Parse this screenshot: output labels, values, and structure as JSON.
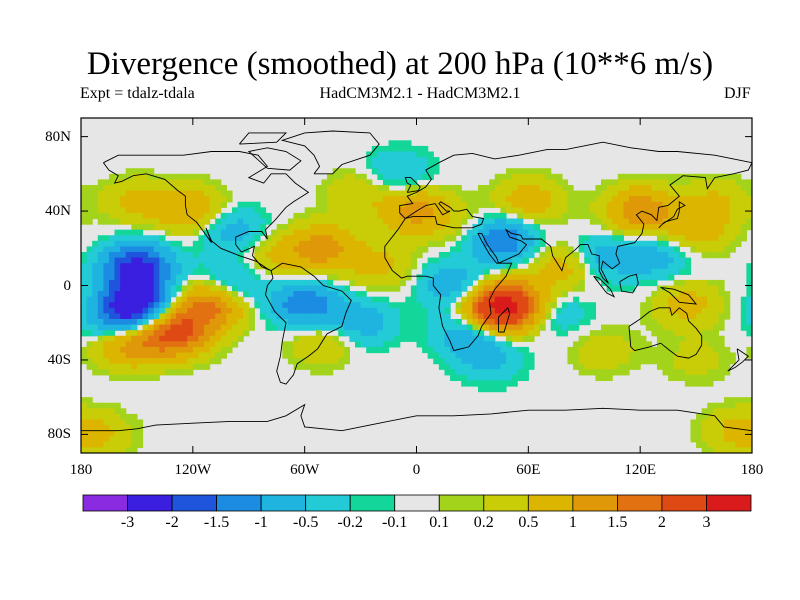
{
  "title": "Divergence (smoothed) at 200 hPa (10**6 m/s)",
  "subtitle_left": "Expt = tdalz-tdala",
  "subtitle_center": "HadCM3M2.1 - HadCM3M2.1",
  "subtitle_right": "DJF",
  "axes": {
    "y_ticks": [
      {
        "label": "80N",
        "lat": 80
      },
      {
        "label": "40N",
        "lat": 40
      },
      {
        "label": "0",
        "lat": 0
      },
      {
        "label": "40S",
        "lat": -40
      },
      {
        "label": "80S",
        "lat": -80
      }
    ],
    "x_ticks": [
      {
        "label": "180",
        "lon": -180
      },
      {
        "label": "120W",
        "lon": -120
      },
      {
        "label": "60W",
        "lon": -60
      },
      {
        "label": "0",
        "lon": 0
      },
      {
        "label": "60E",
        "lon": 60
      },
      {
        "label": "120E",
        "lon": 120
      },
      {
        "label": "180",
        "lon": 180
      }
    ],
    "lon_range": [
      -180,
      180
    ],
    "lat_range": [
      -90,
      90
    ]
  },
  "colorbar": {
    "colors": [
      "#8a2be2",
      "#3a1fe0",
      "#1f55dc",
      "#1b8ce2",
      "#1fb3e0",
      "#22cbd6",
      "#12d69a",
      "#e6e6e6",
      "#a3d31a",
      "#c9cd08",
      "#dcb500",
      "#df9808",
      "#e27211",
      "#df4a14",
      "#da1b1b"
    ],
    "labels": [
      "-3",
      "-2",
      "-1.5",
      "-1",
      "-0.5",
      "-0.2",
      "-0.1",
      "0.1",
      "0.2",
      "0.5",
      "1",
      "1.5",
      "2",
      "3"
    ],
    "thresholds": [
      -3,
      -2,
      -1.5,
      -1,
      -0.5,
      -0.2,
      -0.1,
      0.1,
      0.2,
      0.5,
      1,
      1.5,
      2,
      3
    ]
  },
  "field_anomalies": [
    {
      "lon": -150,
      "lat": 10,
      "value": -2.2
    },
    {
      "lon": -150,
      "lat": -10,
      "value": -2.4
    },
    {
      "lon": -160,
      "lat": -20,
      "value": -1.2
    },
    {
      "lon": -130,
      "lat": -25,
      "value": 2.2
    },
    {
      "lon": -155,
      "lat": -30,
      "value": 1.5
    },
    {
      "lon": -110,
      "lat": -10,
      "value": 1.8
    },
    {
      "lon": -120,
      "lat": 40,
      "value": 1.0
    },
    {
      "lon": -150,
      "lat": 45,
      "value": 0.6
    },
    {
      "lon": -100,
      "lat": 30,
      "value": -0.8
    },
    {
      "lon": -100,
      "lat": 0,
      "value": -0.9
    },
    {
      "lon": -75,
      "lat": 15,
      "value": 0.6
    },
    {
      "lon": -50,
      "lat": 20,
      "value": 1.2
    },
    {
      "lon": -60,
      "lat": -10,
      "value": -1.4
    },
    {
      "lon": -50,
      "lat": -30,
      "value": 0.6
    },
    {
      "lon": -30,
      "lat": -20,
      "value": -0.8
    },
    {
      "lon": -20,
      "lat": 10,
      "value": 0.6
    },
    {
      "lon": -30,
      "lat": 50,
      "value": 0.5
    },
    {
      "lon": -10,
      "lat": 60,
      "value": -0.6
    },
    {
      "lon": 0,
      "lat": 40,
      "value": 1.2
    },
    {
      "lon": 20,
      "lat": 0,
      "value": -0.9
    },
    {
      "lon": 30,
      "lat": 30,
      "value": 0.4
    },
    {
      "lon": 45,
      "lat": 25,
      "value": -1.6
    },
    {
      "lon": 60,
      "lat": 45,
      "value": 0.8
    },
    {
      "lon": 50,
      "lat": -10,
      "value": 2.4
    },
    {
      "lon": 40,
      "lat": -15,
      "value": 1.8
    },
    {
      "lon": 30,
      "lat": -25,
      "value": -1.2
    },
    {
      "lon": 40,
      "lat": -40,
      "value": -0.5
    },
    {
      "lon": 80,
      "lat": 10,
      "value": 0.8
    },
    {
      "lon": 75,
      "lat": -15,
      "value": -0.5
    },
    {
      "lon": 100,
      "lat": 15,
      "value": -0.8
    },
    {
      "lon": 120,
      "lat": 40,
      "value": 1.4
    },
    {
      "lon": 130,
      "lat": 15,
      "value": -0.7
    },
    {
      "lon": 145,
      "lat": -10,
      "value": 0.7
    },
    {
      "lon": 150,
      "lat": 30,
      "value": 0.8
    },
    {
      "lon": 160,
      "lat": 45,
      "value": 0.5
    },
    {
      "lon": 100,
      "lat": -35,
      "value": 0.4
    },
    {
      "lon": 150,
      "lat": -40,
      "value": 0.3
    },
    {
      "lon": -170,
      "lat": -80,
      "value": 0.5
    },
    {
      "lon": 170,
      "lat": -78,
      "value": 0.5
    }
  ]
}
